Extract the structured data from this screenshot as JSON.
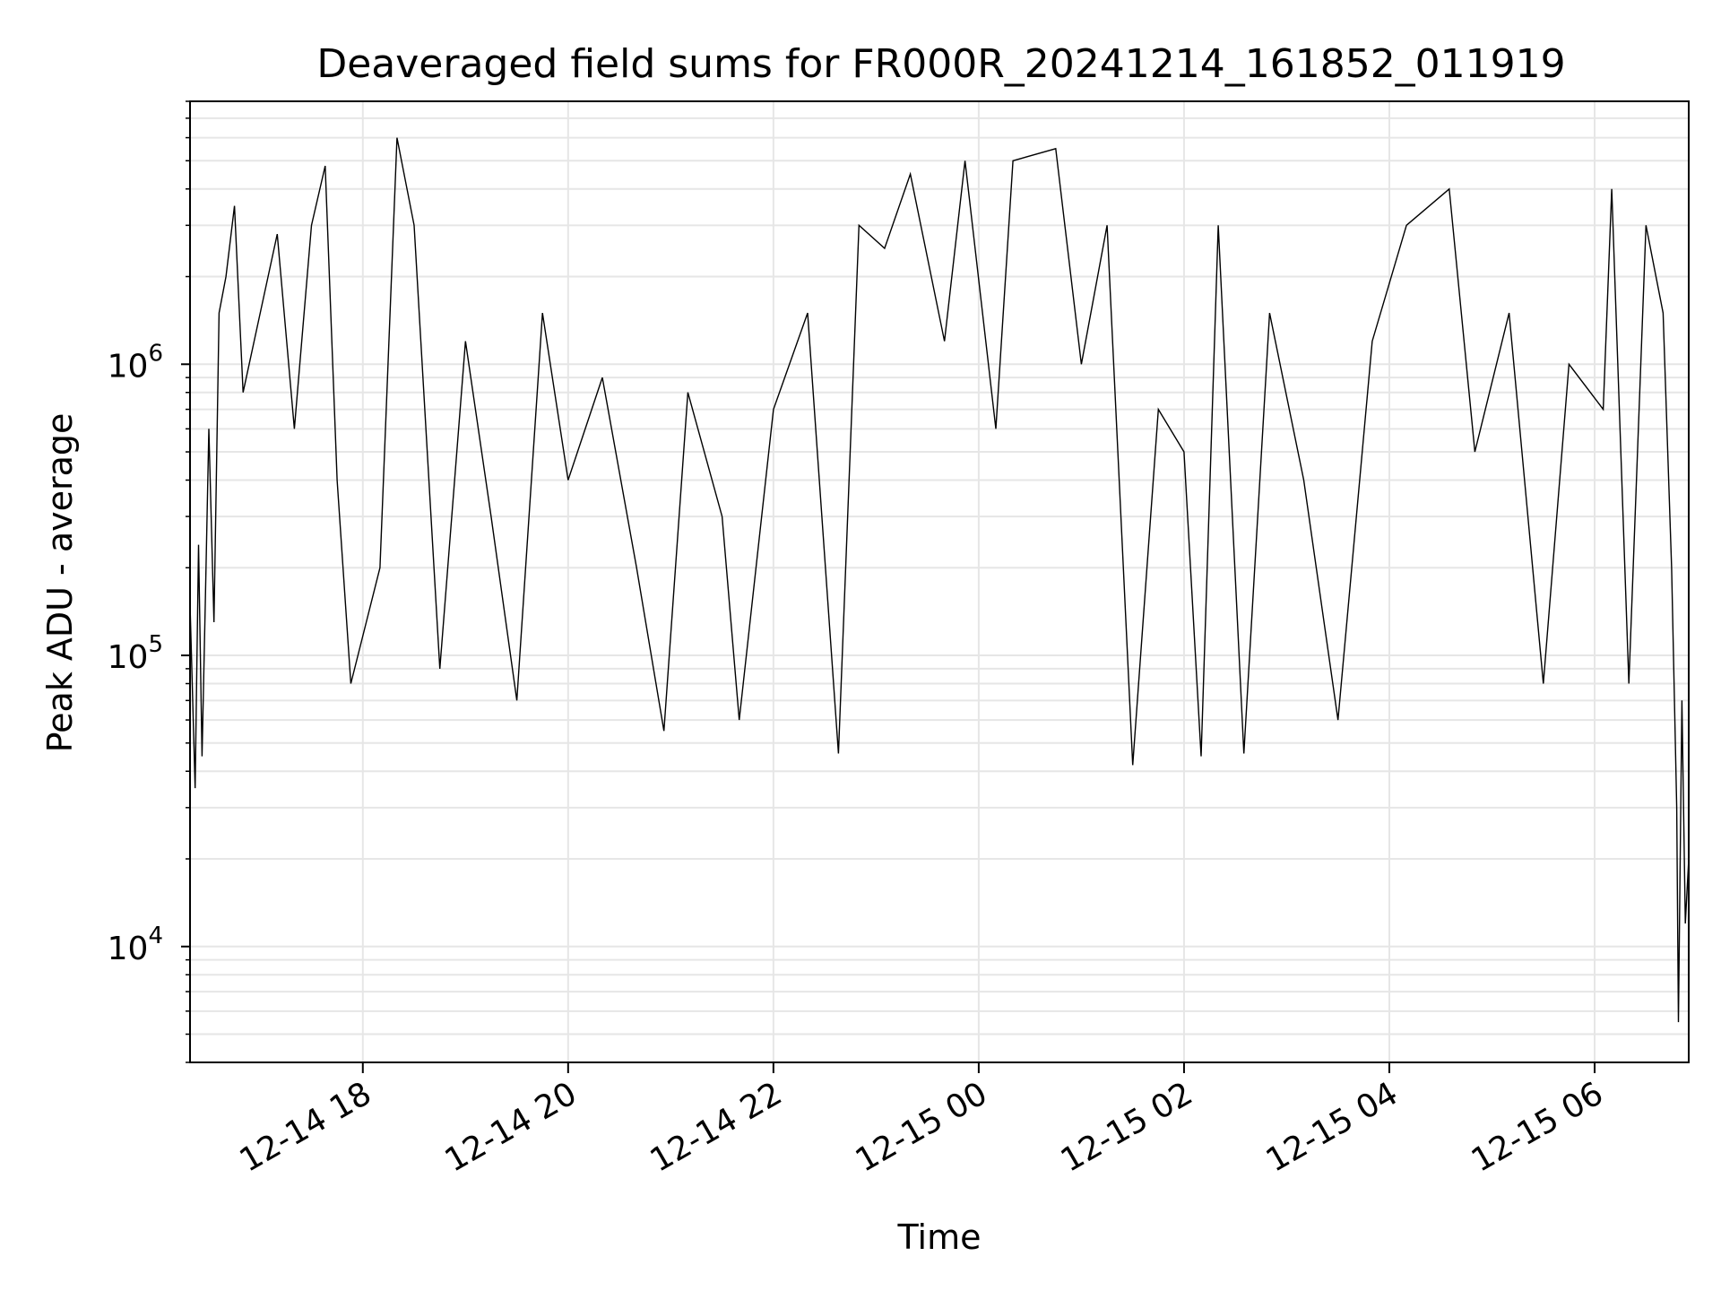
{
  "chart_data": {
    "type": "line",
    "title": "Deaveraged field sums for FR000R_20241214_161852_011919",
    "xlabel": "Time",
    "ylabel": "Peak ADU - average",
    "xlim": [
      "2024-12-14 16:19",
      "2024-12-15 06:55"
    ],
    "ylim": [
      4000,
      8000000
    ],
    "yscale": "log",
    "grid": true,
    "line_color": "#000000",
    "grid_color": "#e6e6e6",
    "x_ticks": [
      {
        "time": "2024-12-14 18:00",
        "label": "12-14 18"
      },
      {
        "time": "2024-12-14 20:00",
        "label": "12-14 20"
      },
      {
        "time": "2024-12-14 22:00",
        "label": "12-14 22"
      },
      {
        "time": "2024-12-15 00:00",
        "label": "12-15 00"
      },
      {
        "time": "2024-12-15 02:00",
        "label": "12-15 02"
      },
      {
        "time": "2024-12-15 04:00",
        "label": "12-15 04"
      },
      {
        "time": "2024-12-15 06:00",
        "label": "12-15 06"
      }
    ],
    "y_ticks": [
      {
        "value": 10000,
        "base": "10",
        "exp": "4"
      },
      {
        "value": 100000,
        "base": "10",
        "exp": "5"
      },
      {
        "value": 1000000,
        "base": "10",
        "exp": "6"
      }
    ],
    "series": [
      {
        "values": [
          [
            "2024-12-14 16:19",
            150000
          ],
          [
            "2024-12-14 16:22",
            35000
          ],
          [
            "2024-12-14 16:24",
            240000
          ],
          [
            "2024-12-14 16:26",
            45000
          ],
          [
            "2024-12-14 16:28",
            160000
          ],
          [
            "2024-12-14 16:30",
            600000
          ],
          [
            "2024-12-14 16:33",
            130000
          ],
          [
            "2024-12-14 16:36",
            1500000
          ],
          [
            "2024-12-14 16:40",
            2000000
          ],
          [
            "2024-12-14 16:45",
            3500000
          ],
          [
            "2024-12-14 16:50",
            800000
          ],
          [
            "2024-12-14 17:00",
            1500000
          ],
          [
            "2024-12-14 17:10",
            2800000
          ],
          [
            "2024-12-14 17:20",
            600000
          ],
          [
            "2024-12-14 17:30",
            3000000
          ],
          [
            "2024-12-14 17:38",
            4800000
          ],
          [
            "2024-12-14 17:45",
            400000
          ],
          [
            "2024-12-14 17:53",
            80000
          ],
          [
            "2024-12-14 18:10",
            200000
          ],
          [
            "2024-12-14 18:20",
            6000000
          ],
          [
            "2024-12-14 18:30",
            3000000
          ],
          [
            "2024-12-14 18:45",
            90000
          ],
          [
            "2024-12-14 19:00",
            1200000
          ],
          [
            "2024-12-14 19:15",
            300000
          ],
          [
            "2024-12-14 19:30",
            70000
          ],
          [
            "2024-12-14 19:45",
            1500000
          ],
          [
            "2024-12-14 20:00",
            400000
          ],
          [
            "2024-12-14 20:20",
            900000
          ],
          [
            "2024-12-14 20:40",
            200000
          ],
          [
            "2024-12-14 20:56",
            55000
          ],
          [
            "2024-12-14 21:10",
            800000
          ],
          [
            "2024-12-14 21:30",
            300000
          ],
          [
            "2024-12-14 21:40",
            60000
          ],
          [
            "2024-12-14 22:00",
            700000
          ],
          [
            "2024-12-14 22:20",
            1500000
          ],
          [
            "2024-12-14 22:38",
            46000
          ],
          [
            "2024-12-14 22:50",
            3000000
          ],
          [
            "2024-12-14 23:05",
            2500000
          ],
          [
            "2024-12-14 23:20",
            4500000
          ],
          [
            "2024-12-14 23:40",
            1200000
          ],
          [
            "2024-12-14 23:52",
            5000000
          ],
          [
            "2024-12-15 00:10",
            600000
          ],
          [
            "2024-12-15 00:20",
            5000000
          ],
          [
            "2024-12-15 00:45",
            5500000
          ],
          [
            "2024-12-15 01:00",
            1000000
          ],
          [
            "2024-12-15 01:15",
            3000000
          ],
          [
            "2024-12-15 01:30",
            42000
          ],
          [
            "2024-12-15 01:45",
            700000
          ],
          [
            "2024-12-15 02:00",
            500000
          ],
          [
            "2024-12-15 02:10",
            45000
          ],
          [
            "2024-12-15 02:20",
            3000000
          ],
          [
            "2024-12-15 02:35",
            46000
          ],
          [
            "2024-12-15 02:50",
            1500000
          ],
          [
            "2024-12-15 03:10",
            400000
          ],
          [
            "2024-12-15 03:30",
            60000
          ],
          [
            "2024-12-15 03:50",
            1200000
          ],
          [
            "2024-12-15 04:10",
            3000000
          ],
          [
            "2024-12-15 04:35",
            4000000
          ],
          [
            "2024-12-15 04:50",
            500000
          ],
          [
            "2024-12-15 05:10",
            1500000
          ],
          [
            "2024-12-15 05:30",
            80000
          ],
          [
            "2024-12-15 05:45",
            1000000
          ],
          [
            "2024-12-15 06:05",
            700000
          ],
          [
            "2024-12-15 06:10",
            4000000
          ],
          [
            "2024-12-15 06:20",
            80000
          ],
          [
            "2024-12-15 06:30",
            3000000
          ],
          [
            "2024-12-15 06:40",
            1500000
          ],
          [
            "2024-12-15 06:45",
            200000
          ],
          [
            "2024-12-15 06:48",
            30000
          ],
          [
            "2024-12-15 06:49",
            5500
          ],
          [
            "2024-12-15 06:51",
            70000
          ],
          [
            "2024-12-15 06:53",
            12000
          ],
          [
            "2024-12-15 06:55",
            20000
          ]
        ]
      }
    ]
  }
}
